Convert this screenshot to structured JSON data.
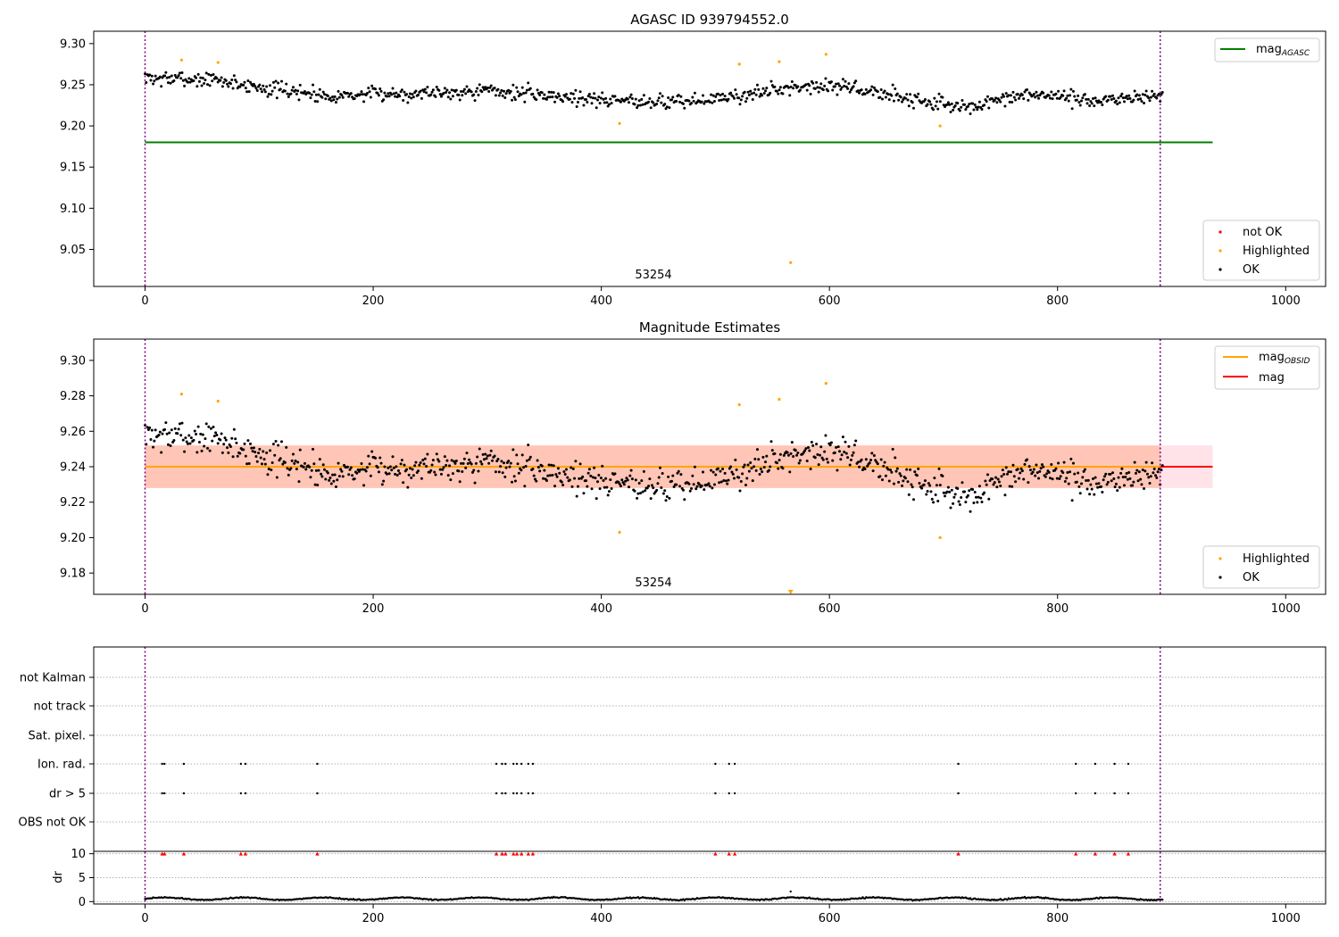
{
  "chart_data": [
    {
      "type": "scatter",
      "title": "AGASC ID 939794552.0",
      "xlim": [
        -45,
        1035
      ],
      "ylim": [
        9.005,
        9.315
      ],
      "xticks": [
        0,
        200,
        400,
        600,
        800,
        1000
      ],
      "xtick_labels": [
        "0",
        "200",
        "400",
        "600",
        "800",
        "1000"
      ],
      "yticks": [
        9.05,
        9.1,
        9.15,
        9.2,
        9.25,
        9.3
      ],
      "ytick_labels": [
        "9.05",
        "9.10",
        "9.15",
        "9.20",
        "9.25",
        "9.30"
      ],
      "obsid_label": "53254",
      "obsid_label_x": 444,
      "obs_bounds": [
        0,
        890
      ],
      "reference_lines": [
        {
          "name": "mag_AGASC",
          "y": 9.18,
          "x_range": [
            0,
            936
          ],
          "color": "#008000"
        }
      ],
      "legend_top": [
        {
          "label": "mag",
          "subscript": "AGASC",
          "color": "#008000"
        }
      ],
      "legend_bottom": [
        {
          "label": "not OK",
          "color": "#ff0000"
        },
        {
          "label": "Highlighted",
          "color": "#ffa500"
        },
        {
          "label": "OK",
          "color": "#000000"
        }
      ],
      "series": [
        {
          "name": "OK",
          "color": "#000000",
          "model": {
            "n": 880,
            "x_start": 0,
            "x_end": 892,
            "noise": 0.009
          }
        },
        {
          "name": "Highlighted",
          "color": "#ffa500",
          "x": [
            32,
            64,
            416,
            521,
            556,
            597,
            697,
            566
          ],
          "y": [
            9.28,
            9.277,
            9.203,
            9.275,
            9.278,
            9.287,
            9.2,
            9.034
          ]
        }
      ]
    },
    {
      "type": "scatter",
      "title": "Magnitude Estimates",
      "xlim": [
        -45,
        1035
      ],
      "ylim": [
        9.168,
        9.312
      ],
      "xticks": [
        0,
        200,
        400,
        600,
        800,
        1000
      ],
      "xtick_labels": [
        "0",
        "200",
        "400",
        "600",
        "800",
        "1000"
      ],
      "yticks": [
        9.18,
        9.2,
        9.22,
        9.24,
        9.26,
        9.28,
        9.3
      ],
      "ytick_labels": [
        "9.18",
        "9.20",
        "9.22",
        "9.24",
        "9.26",
        "9.28",
        "9.30"
      ],
      "obsid_label": "53254",
      "obsid_label_x": 444,
      "obs_bounds": [
        0,
        890
      ],
      "reference_lines": [
        {
          "name": "mag",
          "y": 9.24,
          "x_range": [
            0,
            936
          ],
          "color": "#ff0000"
        },
        {
          "name": "mag_OBSID",
          "y": 9.24,
          "x_range": [
            0,
            890
          ],
          "color": "#ffa500"
        }
      ],
      "bands": [
        {
          "name": "mag-std",
          "y_range": [
            9.228,
            9.252
          ],
          "x_range": [
            0,
            936
          ],
          "color": "#ffc0cb"
        },
        {
          "name": "mag_OBSID-std",
          "y_range": [
            9.228,
            9.252
          ],
          "x_range": [
            0,
            890
          ],
          "color": "#ffa07a"
        }
      ],
      "legend_top": [
        {
          "label": "mag",
          "subscript": "OBSID",
          "color": "#ffa500"
        },
        {
          "label": "mag",
          "subscript": "",
          "color": "#ff0000"
        }
      ],
      "legend_bottom": [
        {
          "label": "Highlighted",
          "color": "#ffa500"
        },
        {
          "label": "OK",
          "color": "#000000"
        }
      ],
      "series": [
        {
          "name": "OK",
          "color": "#000000",
          "model": {
            "n": 880,
            "x_start": 0,
            "x_end": 892,
            "noise": 0.009
          }
        },
        {
          "name": "Highlighted",
          "color": "#ffa500",
          "x": [
            32,
            64,
            416,
            521,
            556,
            597,
            697
          ],
          "y": [
            9.281,
            9.277,
            9.203,
            9.275,
            9.278,
            9.287,
            9.2
          ]
        },
        {
          "name": "Highlighted (off scale)",
          "color": "#ffa500",
          "marker": "triangle-down",
          "x": [
            566
          ],
          "y": [
            9.168
          ]
        }
      ]
    },
    {
      "type": "scatter",
      "title": "",
      "xlim": [
        -45,
        1035
      ],
      "xticks": [
        0,
        200,
        400,
        600,
        800,
        1000
      ],
      "xtick_labels": [
        "0",
        "200",
        "400",
        "600",
        "800",
        "1000"
      ],
      "obs_bounds": [
        0,
        890
      ],
      "flag_rows": [
        "not Kalman",
        "not track",
        "Sat. pixel.",
        "Ion. rad.",
        "dr > 5",
        "OBS not OK"
      ],
      "flag_points": {
        "Ion. rad.": [
          15,
          17,
          34,
          84,
          88,
          151,
          308,
          313,
          316,
          323,
          326,
          330,
          336,
          340,
          500,
          512,
          517,
          713,
          816,
          833,
          850,
          862
        ],
        "dr > 5": [
          15,
          17,
          34,
          84,
          88,
          151,
          308,
          313,
          316,
          323,
          326,
          330,
          336,
          340,
          500,
          512,
          517,
          713,
          816,
          833,
          850,
          862
        ]
      },
      "dr": {
        "ylabel": "dr",
        "ylim": [
          -0.5,
          10.5
        ],
        "yticks": [
          0,
          5,
          10
        ],
        "ytick_labels": [
          "0",
          "5",
          "10"
        ],
        "clipped_x": [
          15,
          17,
          34,
          84,
          88,
          151,
          308,
          313,
          316,
          323,
          326,
          330,
          336,
          340,
          500,
          512,
          517,
          713,
          816,
          833,
          850,
          862
        ],
        "clipped_value": 10,
        "outlier": {
          "x": 566,
          "y": 2.1
        },
        "model": {
          "n": 880,
          "x_start": 0,
          "x_end": 892,
          "base": 0.6
        }
      }
    }
  ]
}
